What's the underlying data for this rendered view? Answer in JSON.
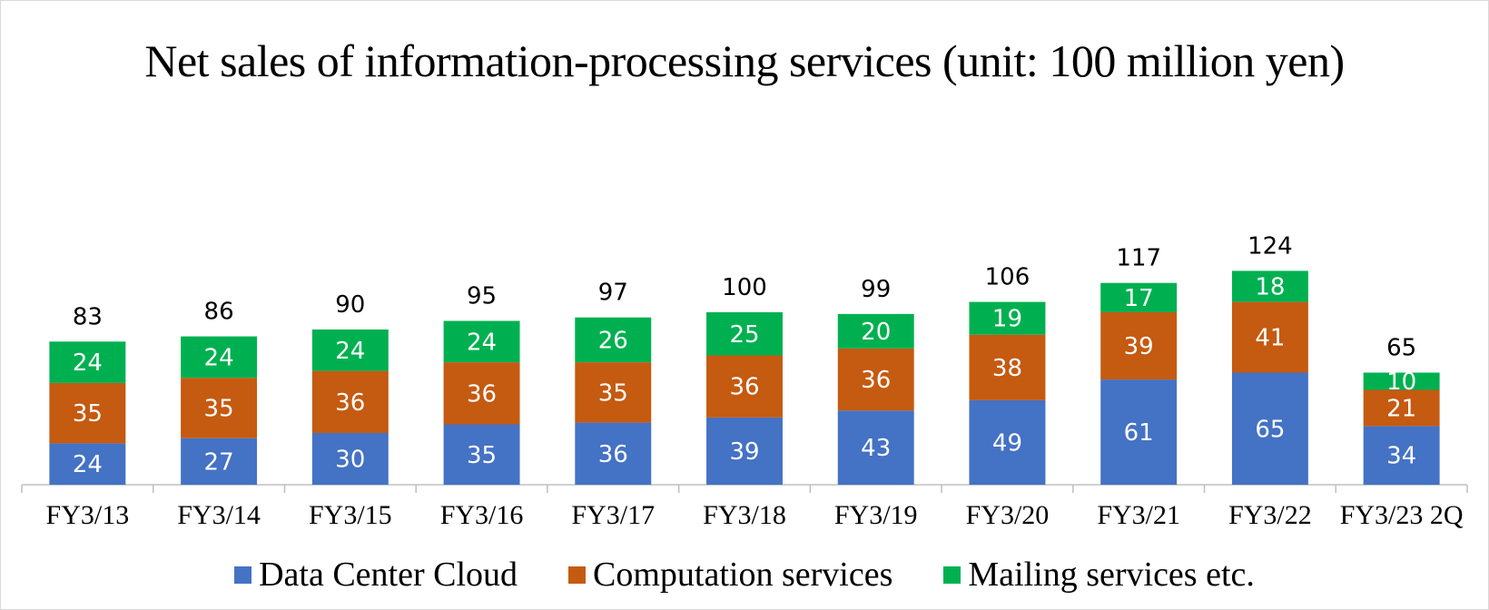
{
  "chart_data": {
    "type": "bar",
    "stacked": true,
    "title": "Net sales of information-processing services (unit: 100 million yen)",
    "xlabel": "",
    "ylabel": "",
    "ylim": [
      0,
      140
    ],
    "grid": false,
    "legend_position": "bottom",
    "categories": [
      "FY3/13",
      "FY3/14",
      "FY3/15",
      "FY3/16",
      "FY3/17",
      "FY3/18",
      "FY3/19",
      "FY3/20",
      "FY3/21",
      "FY3/22",
      "FY3/23 2Q"
    ],
    "series": [
      {
        "name": "Data Center Cloud",
        "color": "#4472c4",
        "values": [
          24,
          27,
          30,
          35,
          36,
          39,
          43,
          49,
          61,
          65,
          34
        ]
      },
      {
        "name": "Computation services",
        "color": "#c55a11",
        "values": [
          35,
          35,
          36,
          36,
          35,
          36,
          36,
          38,
          39,
          41,
          21
        ]
      },
      {
        "name": "Mailing services etc.",
        "color": "#00b050",
        "values": [
          24,
          24,
          24,
          24,
          26,
          25,
          20,
          19,
          17,
          18,
          10
        ]
      }
    ],
    "totals": [
      83,
      86,
      90,
      95,
      97,
      100,
      99,
      106,
      117,
      124,
      65
    ]
  }
}
